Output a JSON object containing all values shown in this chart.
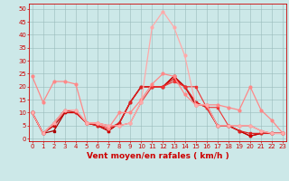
{
  "background_color": "#cce8e8",
  "grid_color": "#99bbbb",
  "xlabel": "Vent moyen/en rafales ( km/h )",
  "xlabel_color": "#cc0000",
  "xlabel_fontsize": 6.5,
  "ytick_vals": [
    0,
    5,
    10,
    15,
    20,
    25,
    30,
    35,
    40,
    45,
    50
  ],
  "ytick_labels": [
    "0",
    "5",
    "10",
    "15",
    "20",
    "25",
    "30",
    "35",
    "40",
    "45",
    "50"
  ],
  "xtick_vals": [
    0,
    1,
    2,
    3,
    4,
    5,
    6,
    7,
    8,
    9,
    10,
    11,
    12,
    13,
    14,
    15,
    16,
    17,
    18,
    19,
    20,
    21,
    22,
    23
  ],
  "xtick_labels": [
    "0",
    "1",
    "2",
    "3",
    "4",
    "5",
    "6",
    "7",
    "8",
    "9",
    "10",
    "11",
    "12",
    "13",
    "14",
    "15",
    "16",
    "17",
    "18",
    "19",
    "20",
    "21",
    "22",
    "23"
  ],
  "ylim": [
    -1,
    52
  ],
  "xlim": [
    -0.3,
    23.3
  ],
  "tick_color": "#cc0000",
  "tick_fontsize": 5.0,
  "lines": [
    {
      "x": [
        0,
        1,
        2,
        3,
        4,
        5,
        6,
        7,
        8,
        9,
        10,
        11,
        12,
        13,
        14,
        15,
        16,
        17,
        18,
        19,
        20,
        21,
        22,
        23
      ],
      "y": [
        10,
        2,
        3,
        10,
        10,
        6,
        5,
        3,
        6,
        14,
        20,
        20,
        20,
        24,
        20,
        13,
        13,
        5,
        5,
        3,
        1,
        2,
        2,
        2
      ],
      "color": "#aa0000",
      "lw": 0.9,
      "marker": "s",
      "ms": 1.8
    },
    {
      "x": [
        0,
        1,
        2,
        3,
        4,
        5,
        6,
        7,
        8,
        9,
        10,
        11,
        12,
        13,
        14,
        15,
        16,
        17,
        18,
        19,
        20,
        21,
        22,
        23
      ],
      "y": [
        10,
        2,
        5,
        10,
        10,
        6,
        5,
        3,
        6,
        14,
        20,
        20,
        20,
        24,
        20,
        14,
        12,
        5,
        5,
        3,
        1,
        2,
        2,
        2
      ],
      "color": "#cc0000",
      "lw": 0.9,
      "marker": "s",
      "ms": 1.8
    },
    {
      "x": [
        0,
        1,
        2,
        3,
        4,
        5,
        6,
        7,
        8,
        9,
        10,
        11,
        12,
        13,
        14,
        15,
        16,
        17,
        18,
        19,
        20,
        21,
        22,
        23
      ],
      "y": [
        10,
        2,
        6,
        11,
        10,
        6,
        5,
        4,
        6,
        14,
        20,
        20,
        20,
        23,
        20,
        14,
        12,
        5,
        5,
        3,
        2,
        2,
        2,
        2
      ],
      "color": "#dd2222",
      "lw": 0.9,
      "marker": "s",
      "ms": 1.8
    },
    {
      "x": [
        0,
        1,
        2,
        3,
        4,
        5,
        6,
        7,
        8,
        9,
        10,
        11,
        12,
        13,
        14,
        15,
        16,
        17,
        18,
        19,
        20,
        21,
        22,
        23
      ],
      "y": [
        10,
        2,
        6,
        11,
        11,
        6,
        6,
        5,
        5,
        6,
        14,
        20,
        20,
        22,
        20,
        20,
        12,
        12,
        5,
        5,
        5,
        3,
        2,
        2
      ],
      "color": "#ee3333",
      "lw": 0.8,
      "marker": "s",
      "ms": 1.8
    },
    {
      "x": [
        0,
        1,
        2,
        3,
        4,
        5,
        6,
        7,
        8,
        9,
        10,
        11,
        12,
        13,
        14,
        15,
        16,
        17,
        18,
        19,
        20,
        21,
        22,
        23
      ],
      "y": [
        24,
        14,
        22,
        22,
        21,
        6,
        6,
        4,
        10,
        10,
        15,
        21,
        25,
        24,
        17,
        13,
        13,
        13,
        12,
        11,
        20,
        11,
        7,
        2
      ],
      "color": "#ff8888",
      "lw": 0.9,
      "marker": "o",
      "ms": 2.0
    },
    {
      "x": [
        0,
        1,
        2,
        3,
        4,
        5,
        6,
        7,
        8,
        9,
        10,
        11,
        12,
        13,
        14,
        15,
        16,
        17,
        18,
        19,
        20,
        21,
        22,
        23
      ],
      "y": [
        10,
        2,
        6,
        11,
        11,
        6,
        6,
        5,
        5,
        6,
        14,
        43,
        49,
        43,
        32,
        13,
        13,
        5,
        5,
        5,
        5,
        3,
        2,
        2
      ],
      "color": "#ffaaaa",
      "lw": 0.9,
      "marker": "o",
      "ms": 2.0
    }
  ]
}
